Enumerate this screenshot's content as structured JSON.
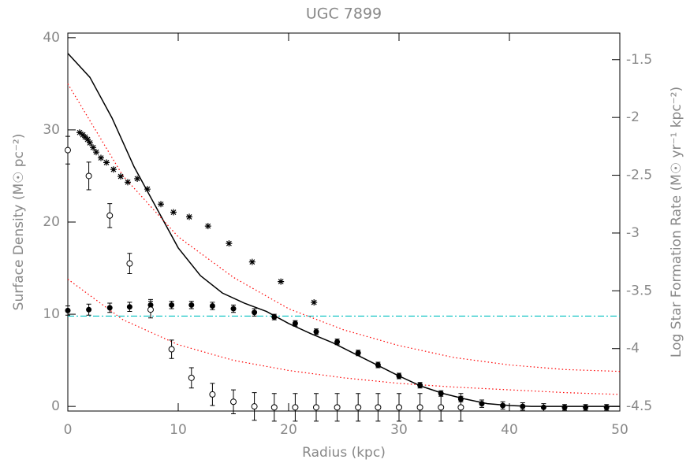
{
  "chart_data": {
    "type": "scatter",
    "title": "UGC 7899",
    "x_label": "Radius (kpc)",
    "y_label": "Surface Density (M☉ pc⁻²)",
    "y2_label": "Log Star Formation Rate (M☉ yr⁻¹ kpc⁻²)",
    "xlim": [
      0,
      50
    ],
    "xticks": [
      0,
      10,
      20,
      30,
      40,
      50
    ],
    "ylim": [
      -0.5,
      40.5
    ],
    "yticks": [
      0,
      10,
      20,
      30,
      40
    ],
    "y2lim": [
      -4.54,
      -1.27
    ],
    "y2ticks": [
      -4.5,
      -4.0,
      -3.5,
      -3.0,
      -2.5,
      -2.0,
      -1.5
    ],
    "series": [
      {
        "style": "solid",
        "color": "#000000",
        "x": [
          0,
          2,
          4,
          6,
          8,
          10,
          12,
          14,
          16,
          18,
          20,
          22,
          24,
          26,
          28,
          30,
          32,
          34,
          36,
          38,
          40,
          42,
          44,
          46,
          48,
          50
        ],
        "values": [
          38.3,
          35.7,
          31.3,
          26,
          21.6,
          17.2,
          14.2,
          12.3,
          11.2,
          10.3,
          9,
          7.9,
          6.9,
          5.7,
          4.5,
          3.3,
          2.2,
          1.4,
          0.8,
          0.3,
          0.1,
          0,
          0,
          0,
          0,
          0
        ]
      },
      {
        "style": "dotted",
        "color": "#ff0000",
        "x": [
          0,
          5,
          10,
          15,
          20,
          25,
          30,
          35,
          40,
          45,
          50
        ],
        "values": [
          35,
          25,
          18.4,
          14,
          10.6,
          8.3,
          6.6,
          5.3,
          4.5,
          4,
          3.8
        ]
      },
      {
        "style": "dotted",
        "color": "#ff0000",
        "x": [
          0,
          5,
          10,
          15,
          20,
          25,
          30,
          35,
          40,
          45,
          50
        ],
        "values": [
          13.8,
          9.4,
          6.7,
          5,
          3.9,
          3.1,
          2.5,
          2.1,
          1.8,
          1.5,
          1.3
        ]
      },
      {
        "style": "dash-dot",
        "color": "#00c0c0",
        "x": [
          0,
          50
        ],
        "values": [
          9.8,
          9.8
        ]
      },
      {
        "marker": "circle-filled",
        "color": "#000000",
        "x": [
          0,
          1.9,
          3.8,
          5.6,
          7.5,
          9.4,
          11.2,
          13.1,
          15,
          16.9,
          18.7,
          20.6,
          22.5,
          24.4,
          26.3,
          28.1,
          30,
          31.9,
          33.8,
          35.6,
          37.5,
          39.4,
          41.2,
          43.1,
          45,
          46.9,
          48.8
        ],
        "values": [
          10.4,
          10.5,
          10.7,
          10.8,
          11,
          11,
          11,
          10.9,
          10.6,
          10.2,
          9.7,
          9,
          8.1,
          7,
          5.8,
          4.5,
          3.3,
          2.3,
          1.4,
          0.8,
          0.3,
          0.1,
          0,
          -0.1,
          -0.1,
          -0.1,
          -0.1
        ],
        "errors": [
          0.5,
          0.6,
          0.5,
          0.5,
          0.6,
          0.4,
          0.4,
          0.4,
          0.4,
          0.4,
          0.3,
          0.3,
          0.3,
          0.3,
          0.3,
          0.3,
          0.3,
          0.3,
          0.3,
          0.3,
          0.4,
          0.4,
          0.4,
          0.4,
          0.3,
          0.3,
          0.3
        ]
      },
      {
        "marker": "circle-open",
        "color": "#000000",
        "x": [
          0,
          1.9,
          3.8,
          5.6,
          7.5,
          9.4,
          11.2,
          13.1,
          15,
          16.9,
          18.7,
          20.6,
          22.5,
          24.4,
          26.3,
          28.1,
          30,
          31.9,
          33.8,
          35.6
        ],
        "values": [
          27.8,
          25,
          20.7,
          15.5,
          10.5,
          6.2,
          3.1,
          1.3,
          0.5,
          0,
          -0.1,
          -0.1,
          -0.1,
          -0.1,
          -0.1,
          -0.1,
          -0.1,
          -0.1,
          -0.1,
          -0.1
        ],
        "errors": [
          1.5,
          1.5,
          1.3,
          1.1,
          0.9,
          1,
          1.1,
          1.2,
          1.3,
          1.5,
          1.5,
          1.5,
          1.5,
          1.5,
          1.5,
          1.5,
          1.5,
          1.5,
          1.5,
          1.5
        ]
      },
      {
        "marker": "asterisk",
        "color": "#000000",
        "axis": "y2",
        "x": [
          1.07,
          1.36,
          1.57,
          1.79,
          2.0,
          2.29,
          2.57,
          3.0,
          3.5,
          4.14,
          4.79,
          5.43,
          6.29,
          7.21,
          8.43,
          9.57,
          11,
          12.7,
          14.6,
          16.7,
          19.3,
          22.3
        ],
        "values": [
          -2.13,
          -2.15,
          -2.17,
          -2.19,
          -2.22,
          -2.26,
          -2.3,
          -2.35,
          -2.39,
          -2.45,
          -2.51,
          -2.56,
          -2.53,
          -2.62,
          -2.75,
          -2.82,
          -2.86,
          -2.94,
          -3.09,
          -3.25,
          -3.42,
          -3.6
        ]
      }
    ]
  }
}
